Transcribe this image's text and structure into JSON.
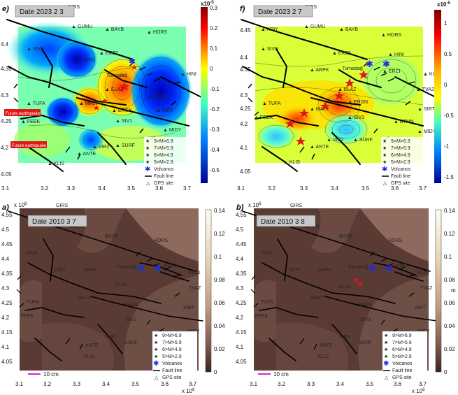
{
  "panels": {
    "e": {
      "letter": "e)",
      "date": "Date 2023 2 3",
      "exp": "x10",
      "exp_pow": "-5",
      "cbar_ticks": [
        "0.3",
        "0.2",
        "0.1",
        "0",
        "-0.1",
        "-0.2",
        "-0.3",
        "-0.4",
        "-0.5"
      ],
      "future1": "Future earthquake",
      "future2": "Future earthquake"
    },
    "f": {
      "letter": "f)",
      "date": "Date 2023 2 7",
      "exp": "x10",
      "exp_pow": "-5",
      "cbar_ticks": [
        "1",
        "0.5",
        "0",
        "-0.5",
        "-1",
        "-1.5"
      ]
    },
    "a": {
      "letter": "a)",
      "date": "Date 2010 3 7",
      "cbar_ticks": [
        "0.14",
        "0.12",
        "0.1",
        "0.08",
        "0.06",
        "0.04",
        "0.02",
        "0"
      ]
    },
    "b": {
      "letter": "b)",
      "date": "Date 2010 3 8",
      "unit": "m",
      "cbar_ticks": [
        "0.14",
        "0.12",
        "0.1",
        "0.08",
        "0.06",
        "0.04",
        "0.02",
        "0"
      ]
    }
  },
  "axes": {
    "y_exp": "x 10",
    "y_exp_pow": "6",
    "x_exp": "x 10",
    "x_exp_pow": "6",
    "y_ticks": [
      "4.55",
      "4.5",
      "4.45",
      "4.4",
      "4.35",
      "4.3",
      "4.25",
      "4.2",
      "4.15",
      "4.1",
      "4.05"
    ],
    "x_ticks": [
      "3.1",
      "3.2",
      "3.3",
      "3.4",
      "3.5",
      "3.6",
      "3.7"
    ]
  },
  "scale_bar": "10 cm",
  "legend": [
    "9>M>6.9",
    "7>M>5.9",
    "6>M>4.9",
    "5>M>2.9",
    "Volcanos",
    "Fault line",
    "GPS site"
  ],
  "stations": [
    "GIRS",
    "GUMU",
    "BAYB",
    "HORS",
    "ERZ2",
    "KRS1",
    "ARPK",
    "ELAZ",
    "MALY",
    "ERGN",
    "SIVS",
    "TUFA",
    "ADIY",
    "VIR2",
    "ANTE",
    "KLIS",
    "SURF",
    "FEEK",
    "HINI",
    "ERCI",
    "BTMN",
    "SIRT",
    "MIDY",
    "TVAZ",
    "SIV1",
    "ARP2"
  ],
  "volcano_label": "Turnadağ",
  "colors": {
    "brown": "#6b4a42",
    "brown_light": "#8e6a5e",
    "brown_dark": "#4a2f2a",
    "star": "#e81818",
    "volcano": "#1a2fe0"
  }
}
